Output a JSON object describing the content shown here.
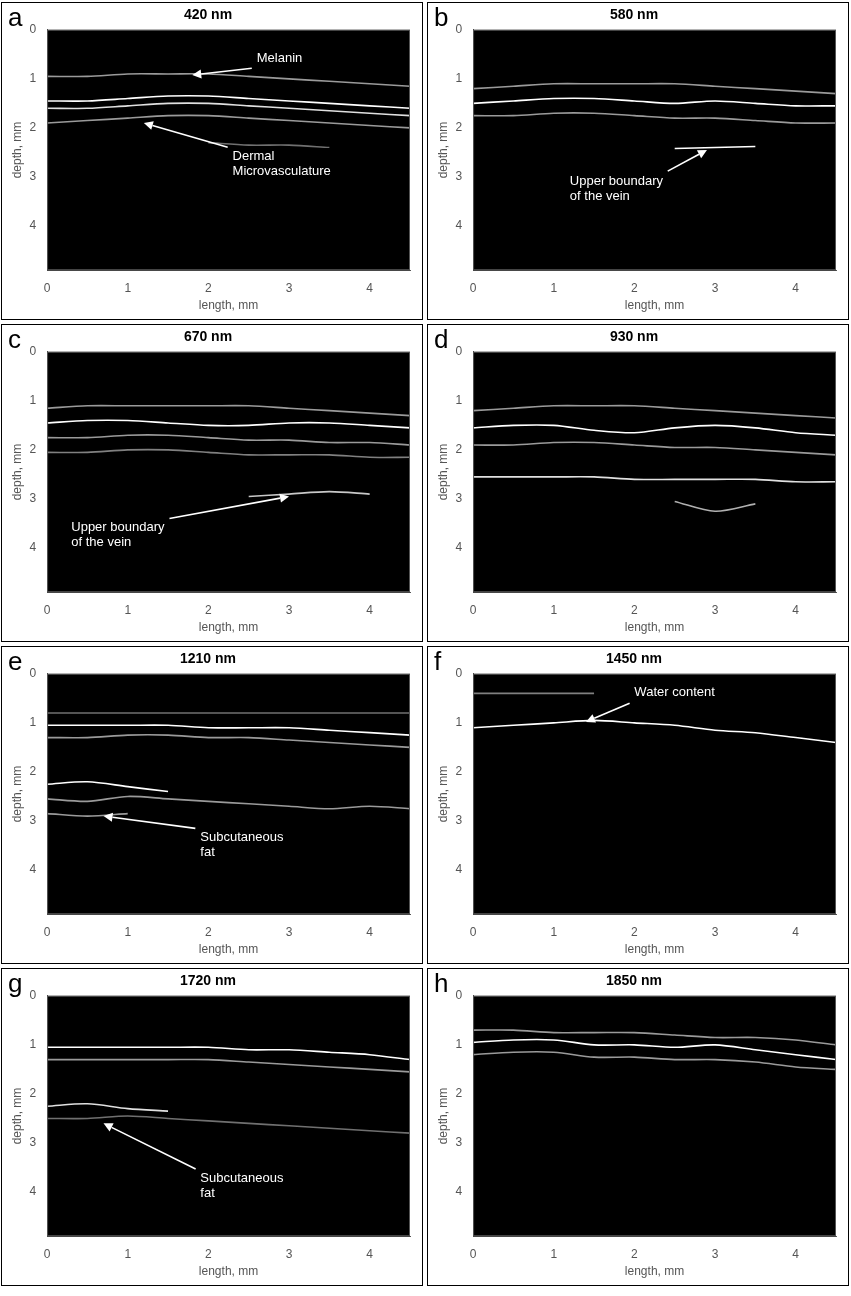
{
  "chart_data": [
    {
      "panel": "a",
      "type": "line",
      "title": "420 nm",
      "x_label": "length, mm",
      "y_label": "depth, mm",
      "xlim": [
        0,
        4.5
      ],
      "ylim": [
        4.9,
        0
      ],
      "xticks": [
        0,
        1,
        2,
        3,
        4
      ],
      "yticks": [
        0,
        1,
        2,
        3,
        4
      ],
      "grid": false,
      "x": [
        0,
        0.5,
        1,
        1.5,
        2,
        2.5,
        3,
        3.5,
        4,
        4.5
      ],
      "series": [
        {
          "color": "#9a9a9a",
          "values": [
            0.95,
            0.95,
            0.9,
            0.9,
            0.9,
            0.95,
            1.0,
            1.05,
            1.1,
            1.15
          ]
        },
        {
          "color": "#ffffff",
          "values": [
            1.45,
            1.45,
            1.4,
            1.35,
            1.35,
            1.4,
            1.45,
            1.5,
            1.55,
            1.6
          ]
        },
        {
          "color": "#e0e0e0",
          "values": [
            1.6,
            1.6,
            1.55,
            1.5,
            1.5,
            1.55,
            1.6,
            1.65,
            1.7,
            1.75
          ]
        },
        {
          "color": "#9a9a9a",
          "values": [
            1.9,
            1.85,
            1.8,
            1.75,
            1.75,
            1.8,
            1.85,
            1.9,
            1.95,
            2.0
          ]
        },
        {
          "color": "#707070",
          "values": [
            null,
            null,
            null,
            null,
            2.3,
            2.35,
            2.35,
            2.4,
            null,
            null
          ]
        }
      ],
      "annotations": [
        {
          "text": [
            "Melanin"
          ],
          "xy": [
            1.8,
            0.92
          ],
          "xytext": [
            2.6,
            0.45
          ]
        },
        {
          "text": [
            "Dermal",
            "Microvasculature"
          ],
          "xy": [
            1.2,
            1.9
          ],
          "xytext": [
            2.3,
            2.45
          ]
        }
      ]
    },
    {
      "panel": "b",
      "type": "line",
      "title": "580 nm",
      "x_label": "length, mm",
      "y_label": "depth, mm",
      "xlim": [
        0,
        4.5
      ],
      "ylim": [
        4.9,
        0
      ],
      "xticks": [
        0,
        1,
        2,
        3,
        4
      ],
      "yticks": [
        0,
        1,
        2,
        3,
        4
      ],
      "grid": false,
      "x": [
        0,
        0.5,
        1,
        1.5,
        2,
        2.5,
        3,
        3.5,
        4,
        4.5
      ],
      "series": [
        {
          "color": "#9a9a9a",
          "values": [
            1.2,
            1.15,
            1.1,
            1.1,
            1.1,
            1.1,
            1.15,
            1.2,
            1.25,
            1.3
          ]
        },
        {
          "color": "#ffffff",
          "values": [
            1.5,
            1.45,
            1.4,
            1.4,
            1.45,
            1.5,
            1.45,
            1.5,
            1.55,
            1.55
          ]
        },
        {
          "color": "#9a9a9a",
          "values": [
            1.75,
            1.75,
            1.7,
            1.7,
            1.75,
            1.8,
            1.8,
            1.85,
            1.9,
            1.9
          ]
        },
        {
          "color": "#ffffff",
          "values": [
            null,
            null,
            null,
            null,
            null,
            2.42,
            2.4,
            2.38,
            null,
            null
          ]
        }
      ],
      "annotations": [
        {
          "text": [
            "Upper boundary",
            "of the vein"
          ],
          "xy": [
            2.9,
            2.45
          ],
          "xytext": [
            1.2,
            2.95
          ]
        }
      ]
    },
    {
      "panel": "c",
      "type": "line",
      "title": "670 nm",
      "x_label": "length, mm",
      "y_label": "depth, mm",
      "xlim": [
        0,
        4.5
      ],
      "ylim": [
        4.9,
        0
      ],
      "xticks": [
        0,
        1,
        2,
        3,
        4
      ],
      "yticks": [
        0,
        1,
        2,
        3,
        4
      ],
      "grid": false,
      "x": [
        0,
        0.5,
        1,
        1.5,
        2,
        2.5,
        3,
        3.5,
        4,
        4.5
      ],
      "series": [
        {
          "color": "#9a9a9a",
          "values": [
            1.15,
            1.1,
            1.1,
            1.1,
            1.1,
            1.1,
            1.15,
            1.2,
            1.25,
            1.3
          ]
        },
        {
          "color": "#ffffff",
          "values": [
            1.45,
            1.4,
            1.4,
            1.45,
            1.5,
            1.5,
            1.45,
            1.45,
            1.5,
            1.55
          ]
        },
        {
          "color": "#9a9a9a",
          "values": [
            1.75,
            1.75,
            1.7,
            1.7,
            1.75,
            1.8,
            1.8,
            1.85,
            1.85,
            1.9
          ]
        },
        {
          "color": "#808080",
          "values": [
            2.05,
            2.05,
            2.0,
            2.0,
            2.05,
            2.1,
            2.1,
            2.1,
            2.15,
            2.15
          ]
        },
        {
          "color": "#c8c8c8",
          "values": [
            null,
            null,
            null,
            null,
            null,
            2.95,
            2.9,
            2.85,
            2.9,
            null
          ]
        }
      ],
      "annotations": [
        {
          "text": [
            "Upper boundary",
            "of the vein"
          ],
          "xy": [
            3.0,
            2.95
          ],
          "xytext": [
            0.3,
            3.45
          ]
        }
      ]
    },
    {
      "panel": "d",
      "type": "line",
      "title": "930 nm",
      "x_label": "length, mm",
      "y_label": "depth, mm",
      "xlim": [
        0,
        4.5
      ],
      "ylim": [
        4.9,
        0
      ],
      "xticks": [
        0,
        1,
        2,
        3,
        4
      ],
      "yticks": [
        0,
        1,
        2,
        3,
        4
      ],
      "grid": false,
      "x": [
        0,
        0.5,
        1,
        1.5,
        2,
        2.5,
        3,
        3.5,
        4,
        4.5
      ],
      "series": [
        {
          "color": "#9a9a9a",
          "values": [
            1.2,
            1.15,
            1.1,
            1.1,
            1.1,
            1.15,
            1.2,
            1.25,
            1.3,
            1.35
          ]
        },
        {
          "color": "#ffffff",
          "values": [
            1.55,
            1.5,
            1.5,
            1.6,
            1.65,
            1.55,
            1.5,
            1.55,
            1.65,
            1.7
          ]
        },
        {
          "color": "#9a9a9a",
          "values": [
            1.9,
            1.9,
            1.85,
            1.85,
            1.9,
            1.95,
            1.95,
            2.0,
            2.05,
            2.1
          ]
        },
        {
          "color": "#e0e0e0",
          "values": [
            2.55,
            2.55,
            2.55,
            2.55,
            2.6,
            2.6,
            2.6,
            2.6,
            2.65,
            2.65
          ]
        },
        {
          "color": "#b0b0b0",
          "values": [
            null,
            null,
            null,
            null,
            null,
            3.05,
            3.25,
            3.1,
            null,
            null
          ]
        }
      ],
      "annotations": []
    },
    {
      "panel": "e",
      "type": "line",
      "title": "1210 nm",
      "x_label": "length, mm",
      "y_label": "depth, mm",
      "xlim": [
        0,
        4.5
      ],
      "ylim": [
        4.9,
        0
      ],
      "xticks": [
        0,
        1,
        2,
        3,
        4
      ],
      "yticks": [
        0,
        1,
        2,
        3,
        4
      ],
      "grid": false,
      "x": [
        0,
        0.5,
        1,
        1.5,
        2,
        2.5,
        3,
        3.5,
        4,
        4.5
      ],
      "series": [
        {
          "color": "#707070",
          "values": [
            0.8,
            0.8,
            0.8,
            0.8,
            0.8,
            0.8,
            0.8,
            0.8,
            0.8,
            0.8
          ]
        },
        {
          "color": "#ffffff",
          "values": [
            1.05,
            1.05,
            1.05,
            1.05,
            1.1,
            1.1,
            1.1,
            1.15,
            1.2,
            1.25
          ]
        },
        {
          "color": "#9a9a9a",
          "values": [
            1.3,
            1.3,
            1.25,
            1.25,
            1.3,
            1.3,
            1.35,
            1.4,
            1.45,
            1.5
          ]
        },
        {
          "color": "#ffffff",
          "values": [
            2.25,
            2.2,
            2.3,
            2.4,
            null,
            null,
            null,
            null,
            null,
            null
          ]
        },
        {
          "color": "#9a9a9a",
          "values": [
            2.55,
            2.6,
            2.5,
            2.55,
            2.6,
            2.65,
            2.7,
            2.75,
            2.7,
            2.75
          ]
        },
        {
          "color": "#9a9a9a",
          "values": [
            2.85,
            2.9,
            2.85,
            null,
            null,
            null,
            null,
            null,
            null,
            null
          ]
        }
      ],
      "annotations": [
        {
          "text": [
            "Subcutaneous",
            "fat"
          ],
          "xy": [
            0.7,
            2.9
          ],
          "xytext": [
            1.9,
            3.2
          ]
        }
      ]
    },
    {
      "panel": "f",
      "type": "line",
      "title": "1450 nm",
      "x_label": "length, mm",
      "y_label": "depth, mm",
      "xlim": [
        0,
        4.5
      ],
      "ylim": [
        4.9,
        0
      ],
      "xticks": [
        0,
        1,
        2,
        3,
        4
      ],
      "yticks": [
        0,
        1,
        2,
        3,
        4
      ],
      "grid": false,
      "x": [
        0,
        0.5,
        1,
        1.5,
        2,
        2.5,
        3,
        3.5,
        4,
        4.5
      ],
      "series": [
        {
          "color": "#808080",
          "values": [
            0.4,
            0.4,
            0.4,
            0.4,
            null,
            null,
            null,
            null,
            null,
            null
          ]
        },
        {
          "color": "#ffffff",
          "values": [
            1.1,
            1.05,
            1.0,
            0.95,
            1.0,
            1.05,
            1.15,
            1.2,
            1.3,
            1.4
          ]
        }
      ],
      "annotations": [
        {
          "text": [
            "Water content"
          ],
          "xy": [
            1.4,
            0.98
          ],
          "xytext": [
            2.0,
            0.25
          ]
        }
      ]
    },
    {
      "panel": "g",
      "type": "line",
      "title": "1720 nm",
      "x_label": "length, mm",
      "y_label": "depth, mm",
      "xlim": [
        0,
        4.5
      ],
      "ylim": [
        4.9,
        0
      ],
      "xticks": [
        0,
        1,
        2,
        3,
        4
      ],
      "yticks": [
        0,
        1,
        2,
        3,
        4
      ],
      "grid": false,
      "x": [
        0,
        0.5,
        1,
        1.5,
        2,
        2.5,
        3,
        3.5,
        4,
        4.5
      ],
      "series": [
        {
          "color": "#ffffff",
          "values": [
            1.05,
            1.05,
            1.05,
            1.05,
            1.05,
            1.1,
            1.1,
            1.15,
            1.2,
            1.3
          ]
        },
        {
          "color": "#9a9a9a",
          "values": [
            1.3,
            1.3,
            1.3,
            1.3,
            1.3,
            1.35,
            1.4,
            1.45,
            1.5,
            1.55
          ]
        },
        {
          "color": "#e0e0e0",
          "values": [
            2.25,
            2.2,
            2.3,
            2.35,
            null,
            null,
            null,
            null,
            null,
            null
          ]
        },
        {
          "color": "#707070",
          "values": [
            2.5,
            2.5,
            2.45,
            2.5,
            2.55,
            2.6,
            2.65,
            2.7,
            2.75,
            2.8
          ]
        }
      ],
      "annotations": [
        {
          "text": [
            "Subcutaneous",
            "fat"
          ],
          "xy": [
            0.7,
            2.6
          ],
          "xytext": [
            1.9,
            3.6
          ]
        }
      ]
    },
    {
      "panel": "h",
      "type": "line",
      "title": "1850 nm",
      "x_label": "length, mm",
      "y_label": "depth, mm",
      "xlim": [
        0,
        4.5
      ],
      "ylim": [
        4.9,
        0
      ],
      "xticks": [
        0,
        1,
        2,
        3,
        4
      ],
      "yticks": [
        0,
        1,
        2,
        3,
        4
      ],
      "grid": false,
      "x": [
        0,
        0.5,
        1,
        1.5,
        2,
        2.5,
        3,
        3.5,
        4,
        4.5
      ],
      "series": [
        {
          "color": "#9a9a9a",
          "values": [
            0.7,
            0.7,
            0.75,
            0.75,
            0.75,
            0.8,
            0.85,
            0.85,
            0.9,
            1.0
          ]
        },
        {
          "color": "#ffffff",
          "values": [
            0.95,
            0.9,
            0.9,
            1.0,
            1.0,
            1.05,
            1.0,
            1.1,
            1.2,
            1.3
          ]
        },
        {
          "color": "#9a9a9a",
          "values": [
            1.2,
            1.15,
            1.15,
            1.25,
            1.25,
            1.3,
            1.3,
            1.35,
            1.45,
            1.5
          ]
        }
      ],
      "annotations": []
    }
  ]
}
